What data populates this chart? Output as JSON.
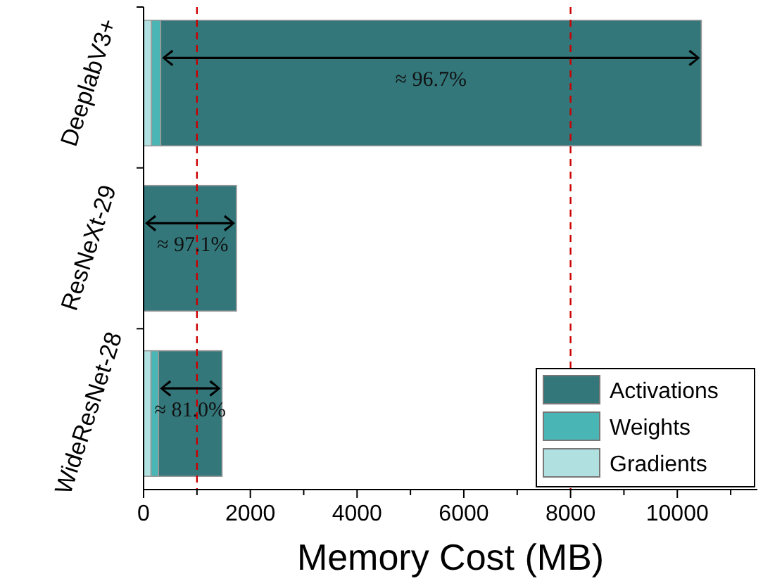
{
  "chart_data": {
    "type": "bar",
    "orientation": "horizontal",
    "stacked": true,
    "xlabel": "Memory Cost (MB)",
    "categories": [
      "DeeplabV3+",
      "ResNeXt-29",
      "WideResNet-28"
    ],
    "series": [
      {
        "name": "Gradients",
        "color": "#b0e0e0",
        "values": [
          150,
          null,
          140
        ]
      },
      {
        "name": "Weights",
        "color": "#4ab5b5",
        "values": [
          170,
          null,
          140
        ]
      },
      {
        "name": "Activations",
        "color": "#33777a",
        "values": [
          10130,
          1740,
          1190
        ]
      }
    ],
    "xlim": [
      0,
      11500
    ],
    "xticks": [
      0,
      {
        "value": 1000,
        "label": null
      },
      2000,
      {
        "value": 3000,
        "label": null
      },
      4000,
      {
        "value": 5000,
        "label": null
      },
      6000,
      {
        "value": 7000,
        "label": null
      },
      8000,
      {
        "value": 9000,
        "label": null
      },
      10000,
      {
        "value": 11000,
        "label": null
      }
    ],
    "ref_lines": [
      {
        "axis": "x",
        "value": 1000,
        "color": "#cc0000",
        "line_style": "dashed"
      },
      {
        "axis": "x",
        "value": 8000,
        "color": "#cc0000",
        "line_style": "dashed"
      }
    ],
    "annotations": [
      {
        "text": "≈ 96.7%",
        "x": 5385,
        "y": "DeeplabV3+"
      },
      {
        "text": "≈ 97.1%",
        "x": 920,
        "y": "ResNeXt-29"
      },
      {
        "text": "≈ 81.0%",
        "x": 875,
        "y": "WideResNet-28"
      }
    ],
    "legend": "bottom right",
    "grid": false
  }
}
